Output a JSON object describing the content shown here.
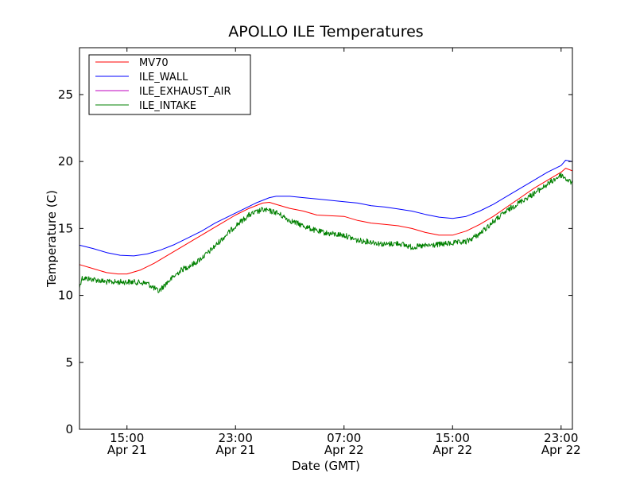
{
  "chart_data": {
    "type": "line",
    "title": "APOLLO ILE Temperatures",
    "xlabel": "Date (GMT)",
    "ylabel": "Temperature (C)",
    "x_type": "datetime",
    "xlim": [
      "2016-04-21 11:30",
      "2016-04-22 23:50"
    ],
    "ylim": [
      0,
      28.5
    ],
    "yticks": [
      0,
      5,
      10,
      15,
      20,
      25
    ],
    "xticks": [
      {
        "time": "2016-04-21 15:00",
        "label": "15:00",
        "sublabel": "Apr 21"
      },
      {
        "time": "2016-04-21 23:00",
        "label": "23:00",
        "sublabel": "Apr 21"
      },
      {
        "time": "2016-04-22 07:00",
        "label": "07:00",
        "sublabel": "Apr 22"
      },
      {
        "time": "2016-04-22 15:00",
        "label": "15:00",
        "sublabel": "Apr 22"
      },
      {
        "time": "2016-04-22 23:00",
        "label": "23:00",
        "sublabel": "Apr 22"
      }
    ],
    "legend": {
      "position": "upper left"
    },
    "grid": false,
    "series": [
      {
        "name": "MV70",
        "color": "#ff0000",
        "noisy": false,
        "points": [
          [
            "2016-04-21 11:30",
            12.3
          ],
          [
            "2016-04-21 12:30",
            12.0
          ],
          [
            "2016-04-21 13:30",
            11.7
          ],
          [
            "2016-04-21 14:20",
            11.6
          ],
          [
            "2016-04-21 15:00",
            11.6
          ],
          [
            "2016-04-21 16:00",
            11.9
          ],
          [
            "2016-04-21 17:00",
            12.4
          ],
          [
            "2016-04-21 18:00",
            13.0
          ],
          [
            "2016-04-21 19:00",
            13.6
          ],
          [
            "2016-04-21 20:00",
            14.2
          ],
          [
            "2016-04-21 21:00",
            14.8
          ],
          [
            "2016-04-21 22:00",
            15.4
          ],
          [
            "2016-04-21 23:00",
            16.0
          ],
          [
            "2016-04-22 00:00",
            16.5
          ],
          [
            "2016-04-22 01:00",
            16.9
          ],
          [
            "2016-04-22 01:30",
            16.95
          ],
          [
            "2016-04-22 02:00",
            16.8
          ],
          [
            "2016-04-22 03:00",
            16.5
          ],
          [
            "2016-04-22 04:00",
            16.3
          ],
          [
            "2016-04-22 05:00",
            16.0
          ],
          [
            "2016-04-22 06:00",
            15.95
          ],
          [
            "2016-04-22 07:00",
            15.9
          ],
          [
            "2016-04-22 08:00",
            15.6
          ],
          [
            "2016-04-22 09:00",
            15.4
          ],
          [
            "2016-04-22 10:00",
            15.3
          ],
          [
            "2016-04-22 11:00",
            15.2
          ],
          [
            "2016-04-22 12:00",
            15.0
          ],
          [
            "2016-04-22 13:00",
            14.7
          ],
          [
            "2016-04-22 14:00",
            14.5
          ],
          [
            "2016-04-22 15:00",
            14.5
          ],
          [
            "2016-04-22 16:00",
            14.8
          ],
          [
            "2016-04-22 17:00",
            15.3
          ],
          [
            "2016-04-22 18:00",
            15.9
          ],
          [
            "2016-04-22 19:00",
            16.6
          ],
          [
            "2016-04-22 20:00",
            17.3
          ],
          [
            "2016-04-22 21:00",
            18.0
          ],
          [
            "2016-04-22 22:00",
            18.6
          ],
          [
            "2016-04-22 23:00",
            19.2
          ],
          [
            "2016-04-22 23:20",
            19.5
          ],
          [
            "2016-04-22 23:50",
            19.3
          ]
        ]
      },
      {
        "name": "ILE_WALL",
        "color": "#0000ff",
        "noisy": false,
        "points": [
          [
            "2016-04-21 11:30",
            13.75
          ],
          [
            "2016-04-21 12:30",
            13.5
          ],
          [
            "2016-04-21 13:30",
            13.2
          ],
          [
            "2016-04-21 14:30",
            13.0
          ],
          [
            "2016-04-21 15:30",
            12.95
          ],
          [
            "2016-04-21 16:30",
            13.1
          ],
          [
            "2016-04-21 17:30",
            13.4
          ],
          [
            "2016-04-21 18:30",
            13.8
          ],
          [
            "2016-04-21 19:30",
            14.3
          ],
          [
            "2016-04-21 20:30",
            14.8
          ],
          [
            "2016-04-21 21:30",
            15.4
          ],
          [
            "2016-04-21 22:30",
            15.9
          ],
          [
            "2016-04-21 23:30",
            16.4
          ],
          [
            "2016-04-22 00:30",
            16.9
          ],
          [
            "2016-04-22 01:30",
            17.3
          ],
          [
            "2016-04-22 02:00",
            17.4
          ],
          [
            "2016-04-22 03:00",
            17.4
          ],
          [
            "2016-04-22 04:00",
            17.3
          ],
          [
            "2016-04-22 05:00",
            17.2
          ],
          [
            "2016-04-22 06:00",
            17.1
          ],
          [
            "2016-04-22 07:00",
            17.0
          ],
          [
            "2016-04-22 08:00",
            16.9
          ],
          [
            "2016-04-22 09:00",
            16.7
          ],
          [
            "2016-04-22 10:00",
            16.6
          ],
          [
            "2016-04-22 11:00",
            16.45
          ],
          [
            "2016-04-22 12:00",
            16.3
          ],
          [
            "2016-04-22 13:00",
            16.05
          ],
          [
            "2016-04-22 14:00",
            15.85
          ],
          [
            "2016-04-22 15:00",
            15.75
          ],
          [
            "2016-04-22 16:00",
            15.9
          ],
          [
            "2016-04-22 17:00",
            16.3
          ],
          [
            "2016-04-22 18:00",
            16.8
          ],
          [
            "2016-04-22 19:00",
            17.4
          ],
          [
            "2016-04-22 20:00",
            18.0
          ],
          [
            "2016-04-22 21:00",
            18.6
          ],
          [
            "2016-04-22 22:00",
            19.2
          ],
          [
            "2016-04-22 23:00",
            19.7
          ],
          [
            "2016-04-22 23:20",
            20.1
          ],
          [
            "2016-04-22 23:50",
            20.0
          ]
        ]
      },
      {
        "name": "ILE_EXHAUST_AIR",
        "color": "#bf00bf",
        "noisy": false,
        "points": []
      },
      {
        "name": "ILE_INTAKE",
        "color": "#008000",
        "noisy": true,
        "points": [
          [
            "2016-04-21 11:30",
            10.6
          ],
          [
            "2016-04-21 11:40",
            11.3
          ],
          [
            "2016-04-21 12:30",
            11.2
          ],
          [
            "2016-04-21 13:30",
            11.0
          ],
          [
            "2016-04-21 14:30",
            11.0
          ],
          [
            "2016-04-21 15:30",
            11.0
          ],
          [
            "2016-04-21 16:30",
            10.9
          ],
          [
            "2016-04-21 17:20",
            10.3
          ],
          [
            "2016-04-21 18:00",
            11.0
          ],
          [
            "2016-04-21 19:00",
            11.9
          ],
          [
            "2016-04-21 20:00",
            12.4
          ],
          [
            "2016-04-21 21:00",
            13.2
          ],
          [
            "2016-04-21 22:00",
            14.2
          ],
          [
            "2016-04-21 23:00",
            15.2
          ],
          [
            "2016-04-22 00:00",
            16.0
          ],
          [
            "2016-04-22 01:00",
            16.4
          ],
          [
            "2016-04-22 02:00",
            16.2
          ],
          [
            "2016-04-22 03:00",
            15.6
          ],
          [
            "2016-04-22 04:00",
            15.2
          ],
          [
            "2016-04-22 05:00",
            14.8
          ],
          [
            "2016-04-22 06:00",
            14.6
          ],
          [
            "2016-04-22 07:00",
            14.5
          ],
          [
            "2016-04-22 08:00",
            14.1
          ],
          [
            "2016-04-22 09:00",
            14.0
          ],
          [
            "2016-04-22 10:00",
            13.8
          ],
          [
            "2016-04-22 11:00",
            13.9
          ],
          [
            "2016-04-22 12:00",
            13.6
          ],
          [
            "2016-04-22 13:00",
            13.7
          ],
          [
            "2016-04-22 14:00",
            13.8
          ],
          [
            "2016-04-22 15:00",
            13.9
          ],
          [
            "2016-04-22 16:00",
            14.0
          ],
          [
            "2016-04-22 17:00",
            14.6
          ],
          [
            "2016-04-22 18:00",
            15.5
          ],
          [
            "2016-04-22 19:00",
            16.3
          ],
          [
            "2016-04-22 20:00",
            17.0
          ],
          [
            "2016-04-22 21:00",
            17.6
          ],
          [
            "2016-04-22 22:00",
            18.3
          ],
          [
            "2016-04-22 23:00",
            19.0
          ],
          [
            "2016-04-22 23:30",
            18.6
          ],
          [
            "2016-04-22 23:50",
            18.4
          ]
        ]
      }
    ]
  }
}
